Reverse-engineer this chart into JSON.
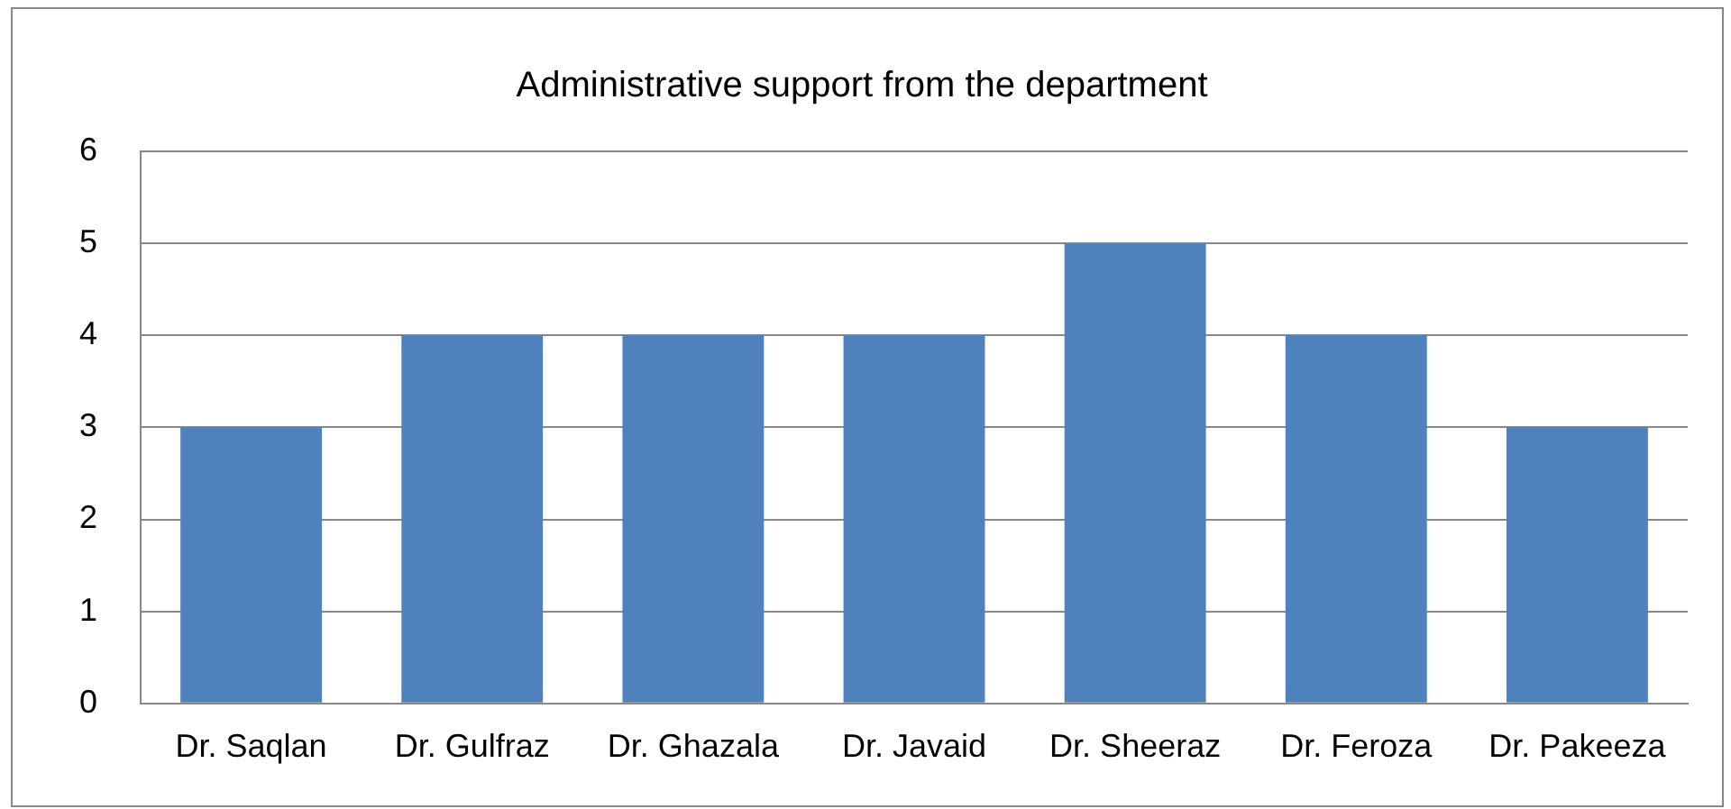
{
  "chart_data": {
    "type": "bar",
    "title": "Administrative support from the department",
    "categories": [
      "Dr. Saqlan",
      "Dr. Gulfraz",
      "Dr. Ghazala",
      "Dr. Javaid",
      "Dr. Sheeraz",
      "Dr. Feroza",
      "Dr. Pakeeza"
    ],
    "values": [
      3,
      4,
      4,
      4,
      5,
      4,
      3
    ],
    "color": "#4f81bd",
    "ylim": [
      0,
      6
    ],
    "yticks": [
      0,
      1,
      2,
      3,
      4,
      5,
      6
    ],
    "grid": "y",
    "legend": false
  }
}
